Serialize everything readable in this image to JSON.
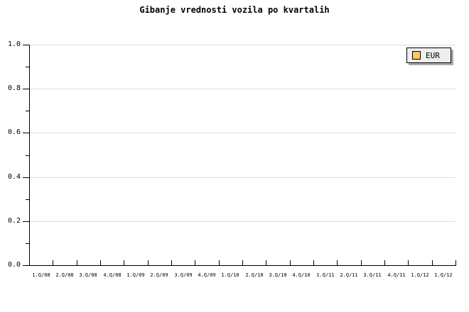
{
  "page": {
    "background": "#FFFFFF"
  },
  "title": "Gibanje vrednosti vozila po kvartalih",
  "legend": {
    "label": "EUR",
    "swatch_color": "#FFC863",
    "background": "#EEEEEE",
    "shadow_color": "#AAAAAA",
    "position": "top-right"
  },
  "colors": {
    "axis": "#000000",
    "grid": "#DDDDDD",
    "text": "#000000"
  },
  "chart_data": {
    "type": "line",
    "title": "Gibanje vrednosti vozila po kvartalih",
    "x_categories": [
      "1.Q/08",
      "2.Q/08",
      "3.Q/08",
      "4.Q/08",
      "1.Q/09",
      "2.Q/09",
      "3.Q/09",
      "4.Q/09",
      "1.Q/10",
      "2.Q/10",
      "3.Q/10",
      "4.Q/10",
      "1.Q/11",
      "2.Q/11",
      "3.Q/11",
      "4.Q/11",
      "1.Q/12",
      "1.Q/12"
    ],
    "y_ticks": [
      0.0,
      0.2,
      0.4,
      0.6,
      0.8,
      1.0
    ],
    "y_tick_labels": [
      "0.0",
      "0.2",
      "0.4",
      "0.6",
      "0.8",
      "1.0"
    ],
    "y_minor_tick_step": 0.1,
    "ylim": [
      0,
      1
    ],
    "xlabel": "",
    "ylabel": "",
    "grid": "horizontal-major-only",
    "legend_position": "top-right",
    "series": [
      {
        "name": "EUR",
        "swatch_color": "#FFC863",
        "values": []
      }
    ]
  }
}
